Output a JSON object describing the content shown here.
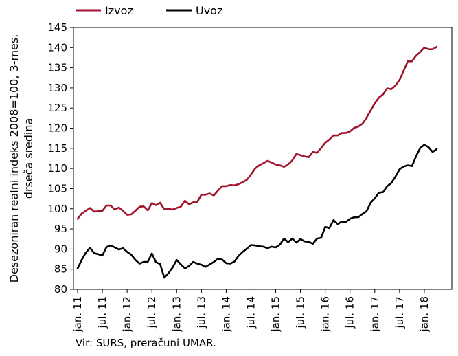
{
  "chart_data": {
    "type": "line",
    "title": "",
    "ylabel_line1": "Desezoniran realni indeks 2008=100, 3-mes.",
    "ylabel_line2": "drseča sredina",
    "xlabel": "",
    "ylim": [
      80,
      145
    ],
    "yticks": [
      "80",
      "85",
      "90",
      "95",
      "100",
      "105",
      "110",
      "115",
      "120",
      "125",
      "130",
      "135",
      "140",
      "145"
    ],
    "xtick_labels": [
      "jan. 11",
      "jul. 11",
      "jan. 12",
      "jul. 12",
      "jan. 13",
      "jul. 13",
      "jan. 14",
      "jul. 14",
      "jan. 15",
      "jul. 15",
      "jan. 16",
      "jul. 16",
      "jan. 17",
      "jul. 17",
      "jan. 18"
    ],
    "xtick_months": [
      0,
      6,
      12,
      18,
      24,
      30,
      36,
      42,
      48,
      54,
      60,
      66,
      72,
      78,
      84
    ],
    "months": 90,
    "legend_position": "top",
    "grid": false,
    "series": [
      {
        "name": "Izvoz",
        "color": "#a0142c",
        "values": [
          97.5,
          98.8,
          99.5,
          100.2,
          99.3,
          99.4,
          99.5,
          100.8,
          100.8,
          99.8,
          100.3,
          99.5,
          98.5,
          98.6,
          99.5,
          100.5,
          100.6,
          99.6,
          101.4,
          100.9,
          101.5,
          99.9,
          100.0,
          99.8,
          100.2,
          100.5,
          102.0,
          101.1,
          101.6,
          101.7,
          103.5,
          103.5,
          103.8,
          103.3,
          104.5,
          105.6,
          105.6,
          105.9,
          105.8,
          106.1,
          106.6,
          107.2,
          108.5,
          110.0,
          110.8,
          111.3,
          111.9,
          111.5,
          111.0,
          110.8,
          110.4,
          111.0,
          112.0,
          113.6,
          113.3,
          113.0,
          112.8,
          114.1,
          113.9,
          115.1,
          116.4,
          117.2,
          118.2,
          118.2,
          118.8,
          118.8,
          119.2,
          120.1,
          120.4,
          121.1,
          122.6,
          124.4,
          126.2,
          127.6,
          128.4,
          129.9,
          129.7,
          130.6,
          132.0,
          134.3,
          136.6,
          136.6,
          138.0,
          138.9,
          140.0,
          139.6,
          139.6,
          140.2
        ],
        "label": "Izvoz"
      },
      {
        "name": "Uvoz",
        "color": "#000000",
        "values": [
          85.2,
          87.3,
          89.1,
          90.3,
          89.0,
          88.7,
          88.4,
          90.5,
          90.9,
          90.4,
          89.9,
          90.2,
          89.3,
          88.6,
          87.3,
          86.4,
          86.8,
          86.8,
          88.9,
          86.7,
          86.3,
          82.9,
          84.0,
          85.4,
          87.3,
          86.2,
          85.2,
          85.8,
          86.8,
          86.4,
          86.1,
          85.6,
          86.2,
          86.8,
          87.6,
          87.4,
          86.5,
          86.4,
          86.9,
          88.3,
          89.3,
          90.1,
          91.0,
          90.9,
          90.7,
          90.6,
          90.2,
          90.6,
          90.4,
          91.1,
          92.6,
          91.7,
          92.6,
          91.6,
          92.5,
          91.9,
          91.8,
          91.3,
          92.6,
          92.8,
          95.5,
          95.2,
          97.2,
          96.2,
          96.8,
          96.7,
          97.5,
          97.9,
          97.9,
          98.7,
          99.4,
          101.5,
          102.6,
          104.0,
          104.1,
          105.6,
          106.4,
          108.0,
          109.8,
          110.5,
          110.8,
          110.6,
          113.0,
          115.1,
          115.9,
          115.3,
          114.1,
          114.8
        ],
        "label": "Uvoz"
      }
    ]
  },
  "source_text": "Vir: SURS, preračuni UMAR."
}
